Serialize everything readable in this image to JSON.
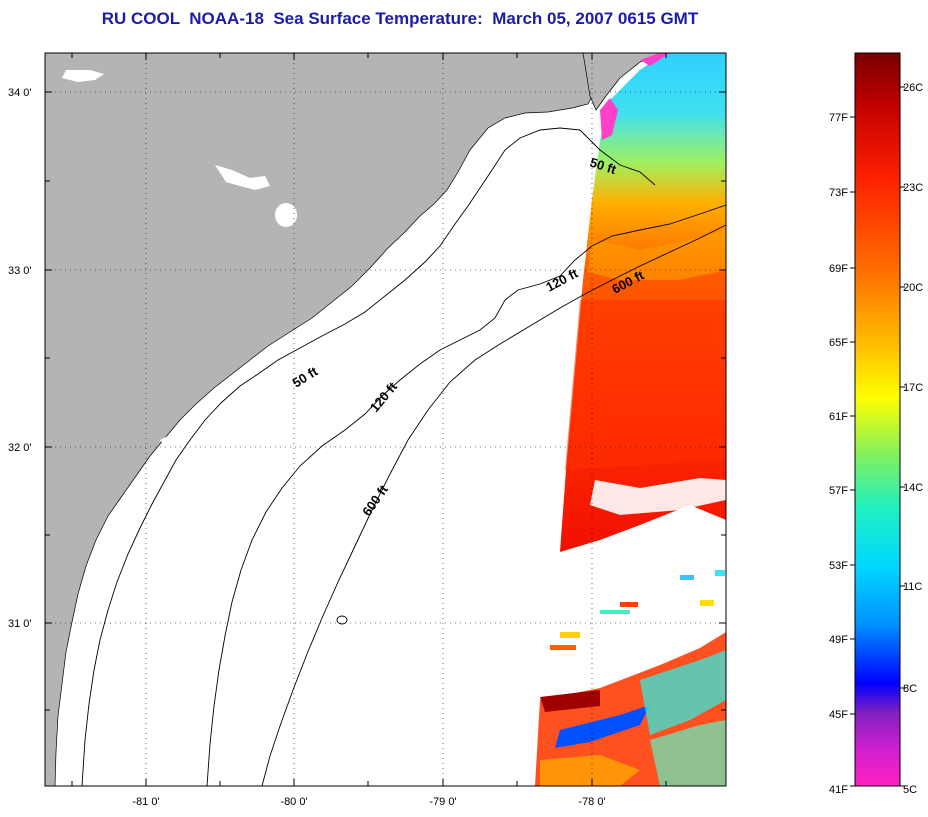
{
  "title": "RU COOL  NOAA-18  Sea Surface Temperature:  March 05, 2007 0615 GMT",
  "map": {
    "lat_labels": [
      "34 0'",
      "33 0'",
      "32 0'",
      "31 0'"
    ],
    "lon_labels": [
      "-81 0'",
      "-80 0'",
      "-79 0'",
      "-78 0'"
    ],
    "land_color": "#b4b4b4",
    "grid": "dotted",
    "contours": [
      {
        "label": "50 ft",
        "placements": 2
      },
      {
        "label": "120 ft",
        "placements": 2
      },
      {
        "label": "600 ft",
        "placements": 2
      }
    ],
    "contour_labels": {
      "c50a": "50 ft",
      "c50b": "50 ft",
      "c120a": "120 ft",
      "c120b": "120 ft",
      "c600a": "600 ft",
      "c600b": "600 ft"
    }
  },
  "colorbar": {
    "fahrenheit_labels": [
      "77F",
      "73F",
      "69F",
      "65F",
      "61F",
      "57F",
      "53F",
      "49F",
      "45F",
      "41F"
    ],
    "celsius_labels": [
      "26C",
      "23C",
      "20C",
      "17C",
      "14C",
      "11C",
      "8C",
      "5C"
    ],
    "colors_top_to_bottom": [
      "#7a0000",
      "#c00000",
      "#ff2000",
      "#ff6a00",
      "#ffaa00",
      "#ffee00",
      "#b8f020",
      "#50f080",
      "#00f0e0",
      "#00b0ff",
      "#0060ff",
      "#0000ff",
      "#7020c0",
      "#c020d0",
      "#ff20c0"
    ]
  }
}
